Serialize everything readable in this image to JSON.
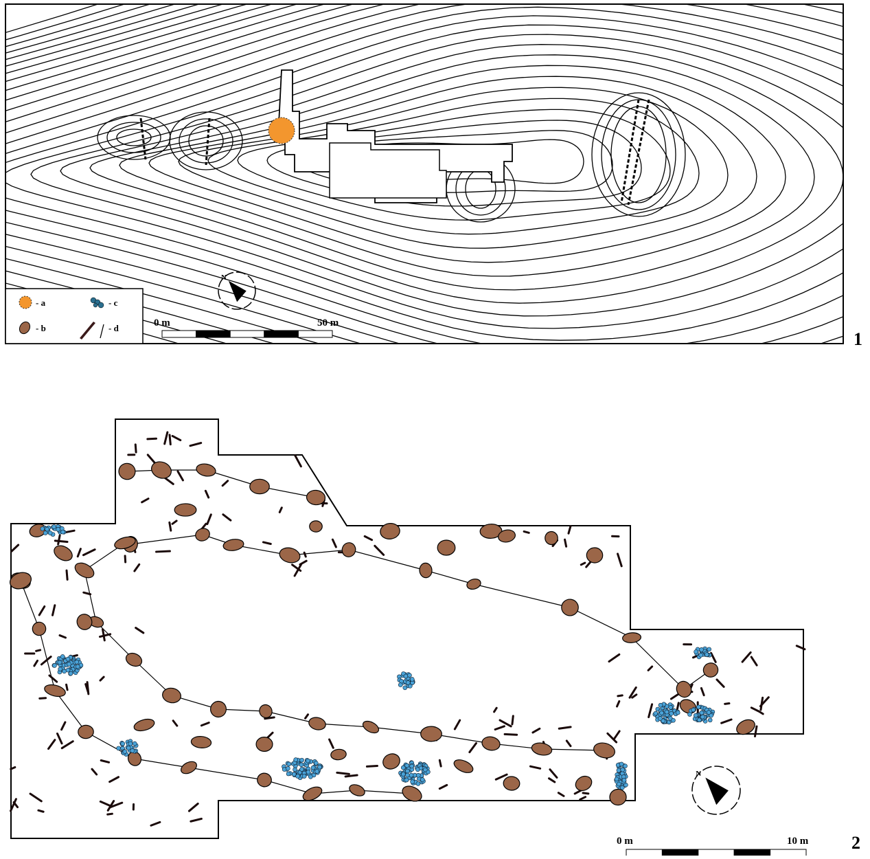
{
  "panels": [
    {
      "label": "1",
      "compass": "N",
      "legend": [
        {
          "label": "- a"
        },
        {
          "label": "- b"
        },
        {
          "label": "- c"
        },
        {
          "label": "- d"
        }
      ],
      "scale": {
        "start": "0 m",
        "end": "50 m"
      }
    },
    {
      "label": "2",
      "compass": "N",
      "scale": {
        "start": "0 m",
        "end": "10 m"
      }
    }
  ]
}
